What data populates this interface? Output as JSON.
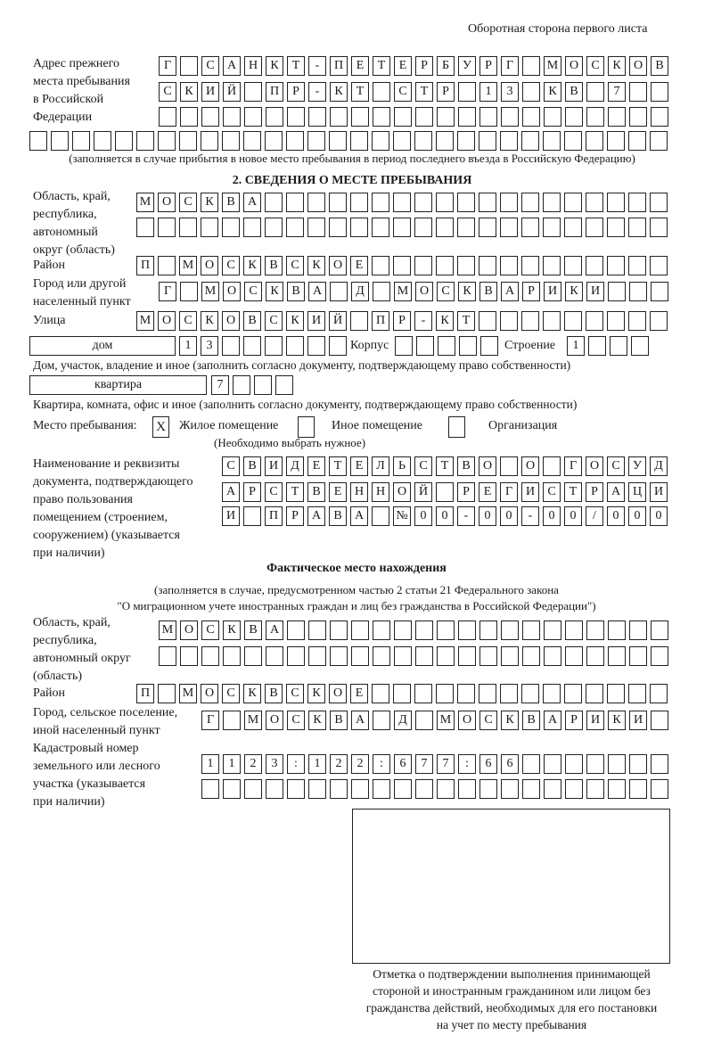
{
  "header": {
    "side_label": "Оборотная сторона первого листа"
  },
  "prev_address": {
    "label": [
      "Адрес прежнего",
      "места пребывания",
      "в Российской",
      "Федерации"
    ],
    "rows": [
      "Г САНКТ-ПЕТЕРБУРГ МОСКОВ",
      "СКИЙ ПР-КТ СТР 13 КВ 7",
      "",
      ""
    ],
    "note": "(заполняется в случае прибытия в новое место пребывания в период последнего въезда в Российскую Федерацию)"
  },
  "section2": {
    "title": "2. СВЕДЕНИЯ О МЕСТЕ ПРЕБЫВАНИЯ",
    "region": {
      "label": [
        "Область, край,",
        "республика,",
        "автономный",
        "округ (область)"
      ],
      "rows": [
        "МОСКВА",
        ""
      ]
    },
    "district": {
      "label": "Район",
      "value": "П МОСКВСКОЕ"
    },
    "city": {
      "label": [
        "Город или другой",
        "населенный пункт"
      ],
      "value": "Г МОСКВА Д МОСКВАРИКИ"
    },
    "street": {
      "label": "Улица",
      "value": "МОСКОВСКИЙ ПР-КТ"
    },
    "house": {
      "type": "дом",
      "number": "13",
      "korpus_label": "Корпус",
      "korpus": "",
      "stroenie_label": "Строение",
      "stroenie": "1",
      "note": "Дом, участок, владение и иное (заполнить согласно документу, подтверждающему право собственности)"
    },
    "apartment": {
      "type": "квартира",
      "number": "7",
      "note": "Квартира, комната, офис и иное (заполнить согласно документу, подтверждающему право собственности)"
    },
    "stay_place": {
      "label": "Место пребывания:",
      "options": [
        {
          "label": "Жилое помещение",
          "mark": "X"
        },
        {
          "label": "Иное помещение",
          "mark": ""
        },
        {
          "label": "Организация",
          "mark": ""
        }
      ],
      "hint": "(Необходимо выбрать нужное)"
    },
    "document": {
      "label": [
        "Наименование и реквизиты",
        "документа, подтверждающего",
        "право пользования",
        "помещением (строением,",
        "сооружением) (указывается",
        "при наличии)"
      ],
      "rows": [
        "СВИДЕТЕЛЬСТВО О ГОСУД",
        "АРСТВЕННОЙ РЕГИСТРАЦИ",
        "И ПРАВА №00-00-00/000"
      ]
    }
  },
  "actual": {
    "title": "Фактическое место нахождения",
    "note": [
      "(заполняется в случае, предусмотренном частью 2 статьи 21 Федерального закона",
      "\"О миграционном учете иностранных граждан и лиц без гражданства в Российской Федерации\")"
    ],
    "region": {
      "label": [
        "Область, край,",
        "республика,",
        "автономный округ",
        "(область)"
      ],
      "rows": [
        "МОСКВА",
        ""
      ]
    },
    "district": {
      "label": "Район",
      "value": "П МОСКВСКОЕ"
    },
    "city": {
      "label": [
        "Город, сельское поселение,",
        "иной населенный пункт"
      ],
      "value": "Г МОСКВА Д МОСКВАРИКИ"
    },
    "cadastral": {
      "label": [
        "Кадастровый номер",
        "земельного или лесного",
        "участка (указывается",
        "при наличии)"
      ],
      "rows": [
        "1123:122:677:66",
        ""
      ]
    }
  },
  "confirmation": {
    "caption": [
      "Отметка о подтверждении выполнения принимающей",
      "стороной и иностранным гражданином или лицом без",
      "гражданства действий, необходимых для его постановки",
      "на учет по месту пребывания"
    ]
  }
}
